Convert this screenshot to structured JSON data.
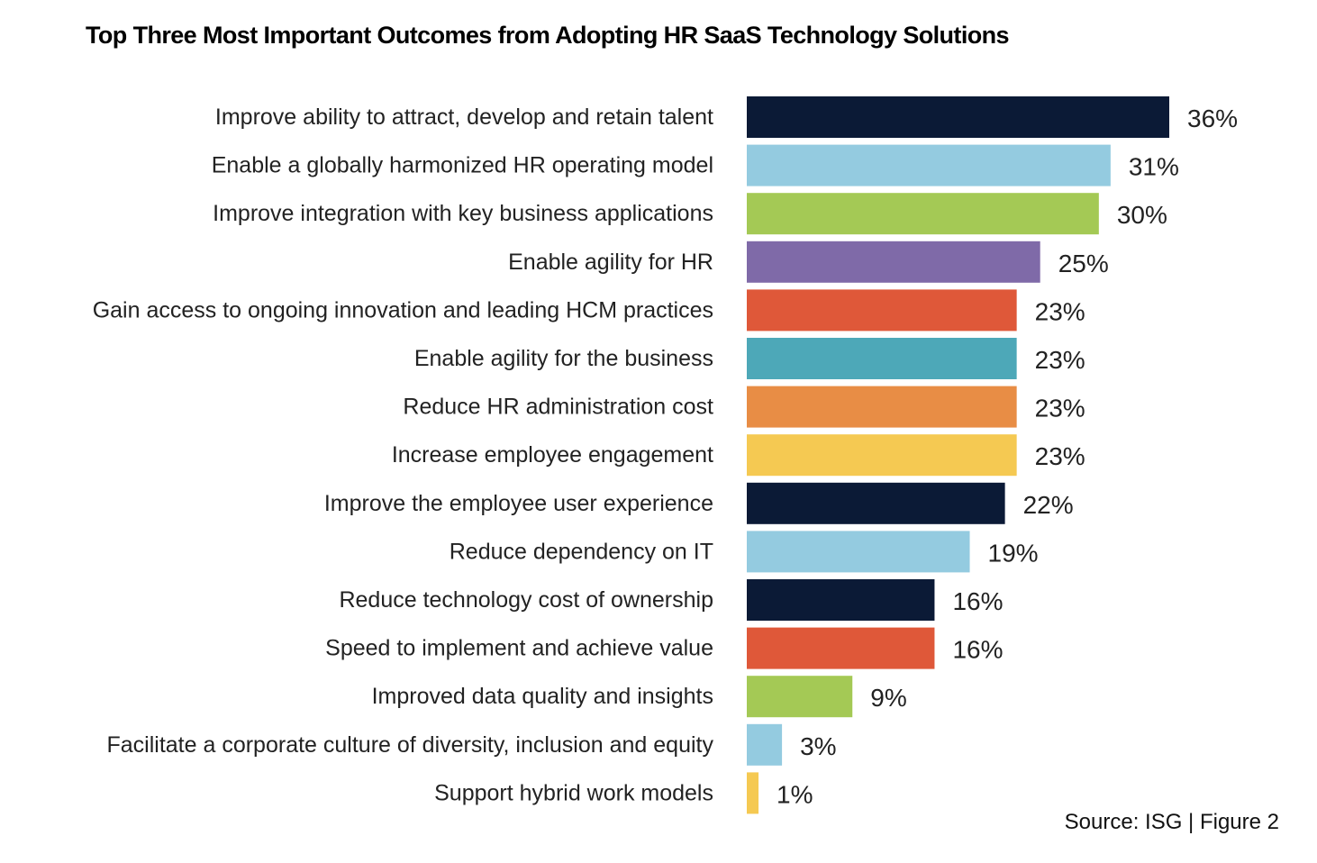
{
  "chart_data": {
    "type": "bar",
    "orientation": "horizontal",
    "title": "Top Three Most Important Outcomes from Adopting HR SaaS Technology Solutions",
    "xlabel": "",
    "ylabel": "",
    "xlim": [
      0,
      36
    ],
    "grid": false,
    "legend": "none",
    "value_suffix": "%",
    "categories": [
      "Improve ability to attract, develop and retain talent",
      "Enable a globally harmonized HR operating model",
      "Improve integration with key business applications",
      "Enable agility for HR",
      "Gain access to ongoing innovation and leading HCM practices",
      "Enable agility for the business",
      "Reduce HR administration cost",
      "Increase employee engagement",
      "Improve the employee user experience",
      "Reduce dependency on IT",
      "Reduce technology cost of ownership",
      "Speed to implement and achieve value",
      "Improved data quality and insights",
      "Facilitate a corporate culture of diversity, inclusion and equity",
      "Support hybrid work models"
    ],
    "values": [
      36,
      31,
      30,
      25,
      23,
      23,
      23,
      23,
      22,
      19,
      16,
      16,
      9,
      3,
      1
    ],
    "value_labels": [
      "36%",
      "31%",
      "30%",
      "25%",
      "23%",
      "23%",
      "23%",
      "23%",
      "22%",
      "19%",
      "16%",
      "16%",
      "9%",
      "3%",
      "1%"
    ],
    "colors": [
      "#0b1a36",
      "#94cbe0",
      "#a4c955",
      "#7f6aa8",
      "#df5839",
      "#4da8b8",
      "#e88d45",
      "#f5c952",
      "#0b1a36",
      "#94cbe0",
      "#0b1a36",
      "#df5839",
      "#a4c955",
      "#94cbe0",
      "#f5c952"
    ]
  },
  "footer": {
    "source": "Source: ISG | Figure 2"
  }
}
